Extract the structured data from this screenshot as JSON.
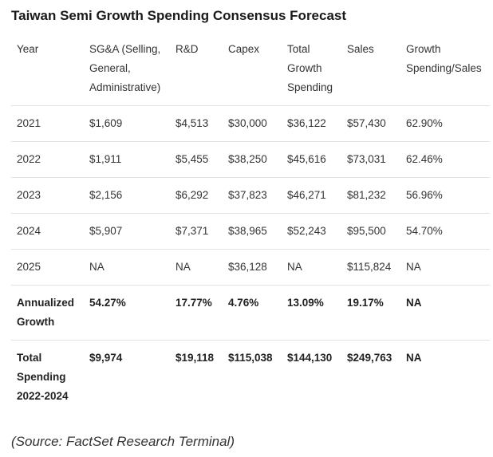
{
  "title": "Taiwan Semi Growth Spending Consensus Forecast",
  "table": {
    "headers": [
      "Year",
      "SG&A (Selling, General, Administrative)",
      "R&D",
      "Capex",
      "Total Growth Spending",
      "Sales",
      "Growth Spending/Sales"
    ],
    "rows": [
      [
        "2021",
        "$1,609",
        "$4,513",
        "$30,000",
        "$36,122",
        "$57,430",
        "62.90%"
      ],
      [
        "2022",
        "$1,911",
        "$5,455",
        "$38,250",
        "$45,616",
        "$73,031",
        "62.46%"
      ],
      [
        "2023",
        "$2,156",
        "$6,292",
        "$37,823",
        "$46,271",
        "$81,232",
        "56.96%"
      ],
      [
        "2024",
        "$5,907",
        "$7,371",
        "$38,965",
        "$52,243",
        "$95,500",
        "54.70%"
      ],
      [
        "2025",
        "NA",
        "NA",
        "$36,128",
        "NA",
        "$115,824",
        "NA"
      ],
      [
        "Annualized Growth",
        "54.27%",
        "17.77%",
        "4.76%",
        "13.09%",
        "19.17%",
        "NA"
      ],
      [
        "Total Spending 2022-2024",
        "$9,974",
        "$19,118",
        "$115,038",
        "$144,130",
        "$249,763",
        "NA"
      ]
    ]
  },
  "source": "(Source: FactSet Research Terminal)"
}
